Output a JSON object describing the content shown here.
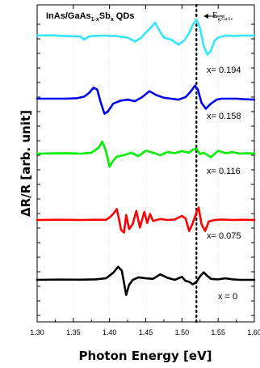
{
  "chart_data": {
    "type": "line",
    "title": "InAs/GaAs1-xSbx QDs",
    "title_parts": {
      "main": "InAs/GaAs",
      "sub1": "1-x",
      "mid": "Sb",
      "sub2": "x",
      "end": " QDs"
    },
    "xlabel": "Photon Energy [eV]",
    "ylabel": "ΔR/R [arb. unit]",
    "xlim": [
      1.3,
      1.6
    ],
    "x_ticks": [
      "1.30",
      "1.35",
      "1.40",
      "1.45",
      "1.50",
      "1.55",
      "1.60"
    ],
    "grid": "vertical dotted",
    "reference_line": {
      "x": 1.52,
      "label_main": "E",
      "label_sub": "g,GaAs"
    },
    "series": [
      {
        "name": "x = 0",
        "color": "#000000",
        "x": [
          1.3,
          1.33,
          1.36,
          1.38,
          1.395,
          1.405,
          1.412,
          1.417,
          1.42,
          1.423,
          1.427,
          1.432,
          1.44,
          1.45,
          1.46,
          1.47,
          1.48,
          1.49,
          1.5,
          1.505,
          1.51,
          1.515,
          1.52,
          1.525,
          1.53,
          1.535,
          1.54,
          1.55,
          1.56,
          1.57,
          1.58,
          1.59,
          1.6
        ],
        "y": [
          0,
          0.5,
          0.3,
          1.0,
          3.0,
          14.0,
          26.0,
          18.0,
          -6.0,
          -30.0,
          -10.0,
          0,
          5.0,
          3.0,
          2.0,
          11.0,
          4.0,
          0,
          6.0,
          -2.0,
          -4.0,
          -9.0,
          -4.0,
          7.0,
          15.0,
          8.0,
          2.0,
          1.0,
          3.0,
          1.0,
          0,
          0,
          0
        ]
      },
      {
        "name": "x= 0.075",
        "color": "#ff0000",
        "x": [
          1.3,
          1.33,
          1.36,
          1.38,
          1.395,
          1.4,
          1.405,
          1.41,
          1.413,
          1.416,
          1.42,
          1.423,
          1.427,
          1.432,
          1.437,
          1.442,
          1.448,
          1.452,
          1.456,
          1.46,
          1.47,
          1.48,
          1.49,
          1.5,
          1.505,
          1.51,
          1.515,
          1.52,
          1.523,
          1.527,
          1.532,
          1.537,
          1.545,
          1.555,
          1.57,
          1.585,
          1.6
        ],
        "y": [
          0,
          0.5,
          0,
          0.5,
          0.3,
          5.0,
          12.0,
          22.0,
          2.0,
          -20.0,
          -25.0,
          10.0,
          -18.0,
          -8.0,
          18.0,
          -15.0,
          16.0,
          -6.0,
          12.0,
          -2.0,
          2.0,
          0,
          1.0,
          8.0,
          3.0,
          -22.0,
          -6.0,
          15.0,
          25.0,
          -8.0,
          -22.0,
          -3.0,
          0,
          1.0,
          0,
          0.5,
          0
        ]
      },
      {
        "name": "x= 0.116",
        "color": "#00ee00",
        "x": [
          1.3,
          1.32,
          1.34,
          1.36,
          1.375,
          1.385,
          1.39,
          1.395,
          1.4,
          1.405,
          1.41,
          1.42,
          1.43,
          1.44,
          1.45,
          1.46,
          1.47,
          1.48,
          1.49,
          1.5,
          1.51,
          1.515,
          1.52,
          1.525,
          1.53,
          1.54,
          1.55,
          1.56,
          1.57,
          1.58,
          1.59,
          1.6
        ],
        "y": [
          0,
          0.5,
          1.0,
          0,
          2.0,
          12.0,
          24.0,
          5.0,
          -26.0,
          -14.0,
          -6.0,
          -3.0,
          2.0,
          -5.0,
          6.0,
          2.0,
          -3.0,
          3.0,
          1.0,
          5.0,
          2.0,
          8.0,
          10.0,
          -1.0,
          2.0,
          -7.0,
          6.0,
          1.0,
          3.0,
          0,
          1.0,
          0
        ]
      },
      {
        "name": "x= 0.158",
        "color": "#0000ee",
        "x": [
          1.3,
          1.32,
          1.34,
          1.355,
          1.365,
          1.372,
          1.378,
          1.383,
          1.388,
          1.393,
          1.398,
          1.405,
          1.415,
          1.425,
          1.435,
          1.445,
          1.455,
          1.465,
          1.475,
          1.485,
          1.495,
          1.505,
          1.512,
          1.518,
          1.522,
          1.527,
          1.533,
          1.54,
          1.548,
          1.555,
          1.565,
          1.575,
          1.585,
          1.6
        ],
        "y": [
          0,
          0,
          0,
          1.0,
          4.0,
          12.0,
          22.0,
          18.0,
          -8.0,
          -30.0,
          -25.0,
          -10.0,
          -4.0,
          -2.0,
          -5.0,
          3.0,
          15.0,
          7.0,
          2.0,
          0,
          -2.0,
          3.0,
          14.0,
          26.0,
          18.0,
          -8.0,
          -20.0,
          -10.0,
          -2.0,
          0,
          0,
          0,
          -1.0,
          -2.0
        ]
      },
      {
        "name": "x= 0.194",
        "color": "#33e5ff",
        "x": [
          1.3,
          1.32,
          1.34,
          1.36,
          1.365,
          1.37,
          1.375,
          1.39,
          1.41,
          1.425,
          1.435,
          1.443,
          1.45,
          1.457,
          1.463,
          1.468,
          1.475,
          1.485,
          1.495,
          1.503,
          1.51,
          1.515,
          1.52,
          1.525,
          1.53,
          1.535,
          1.54,
          1.545,
          1.55,
          1.56,
          1.57,
          1.58,
          1.59,
          1.6
        ],
        "y": [
          0,
          0.5,
          -1.0,
          -2.0,
          -8.0,
          -3.0,
          -1.0,
          0,
          -1.0,
          -4.0,
          -12.0,
          -5.0,
          6.0,
          16.0,
          26.0,
          12.0,
          -4.0,
          -8.0,
          -18.0,
          -10.0,
          5.0,
          22.0,
          32.0,
          15.0,
          -20.0,
          -38.0,
          -30.0,
          -10.0,
          -4.0,
          0,
          -1.0,
          0,
          0,
          0
        ]
      }
    ]
  }
}
